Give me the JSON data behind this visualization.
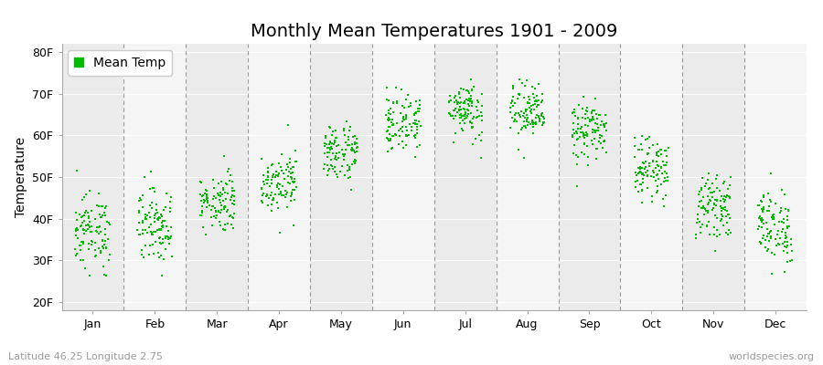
{
  "title": "Monthly Mean Temperatures 1901 - 2009",
  "ylabel": "Temperature",
  "legend_label": "Mean Temp",
  "subtitle_left": "Latitude 46.25 Longitude 2.75",
  "subtitle_right": "worldspecies.org",
  "ytick_labels": [
    "20F",
    "30F",
    "40F",
    "50F",
    "60F",
    "70F",
    "80F"
  ],
  "ytick_values": [
    20,
    30,
    40,
    50,
    60,
    70,
    80
  ],
  "ylim": [
    18,
    82
  ],
  "months": [
    "Jan",
    "Feb",
    "Mar",
    "Apr",
    "May",
    "Jun",
    "Jul",
    "Aug",
    "Sep",
    "Oct",
    "Nov",
    "Dec"
  ],
  "monthly_means_f": [
    37.0,
    38.5,
    44.0,
    49.0,
    56.0,
    63.0,
    66.5,
    65.5,
    61.0,
    52.0,
    43.0,
    38.0
  ],
  "monthly_stds_f": [
    4.5,
    4.5,
    3.5,
    3.5,
    3.5,
    3.5,
    3.5,
    3.5,
    3.5,
    3.5,
    3.5,
    4.5
  ],
  "n_years": 109,
  "dot_color": "#00bb00",
  "dot_size": 3,
  "strip_color_odd": "#ebebeb",
  "strip_color_even": "#f5f5f5",
  "grid_color": "#999999",
  "title_fontsize": 14,
  "axis_fontsize": 10,
  "tick_fontsize": 9,
  "subtitle_fontsize": 8
}
